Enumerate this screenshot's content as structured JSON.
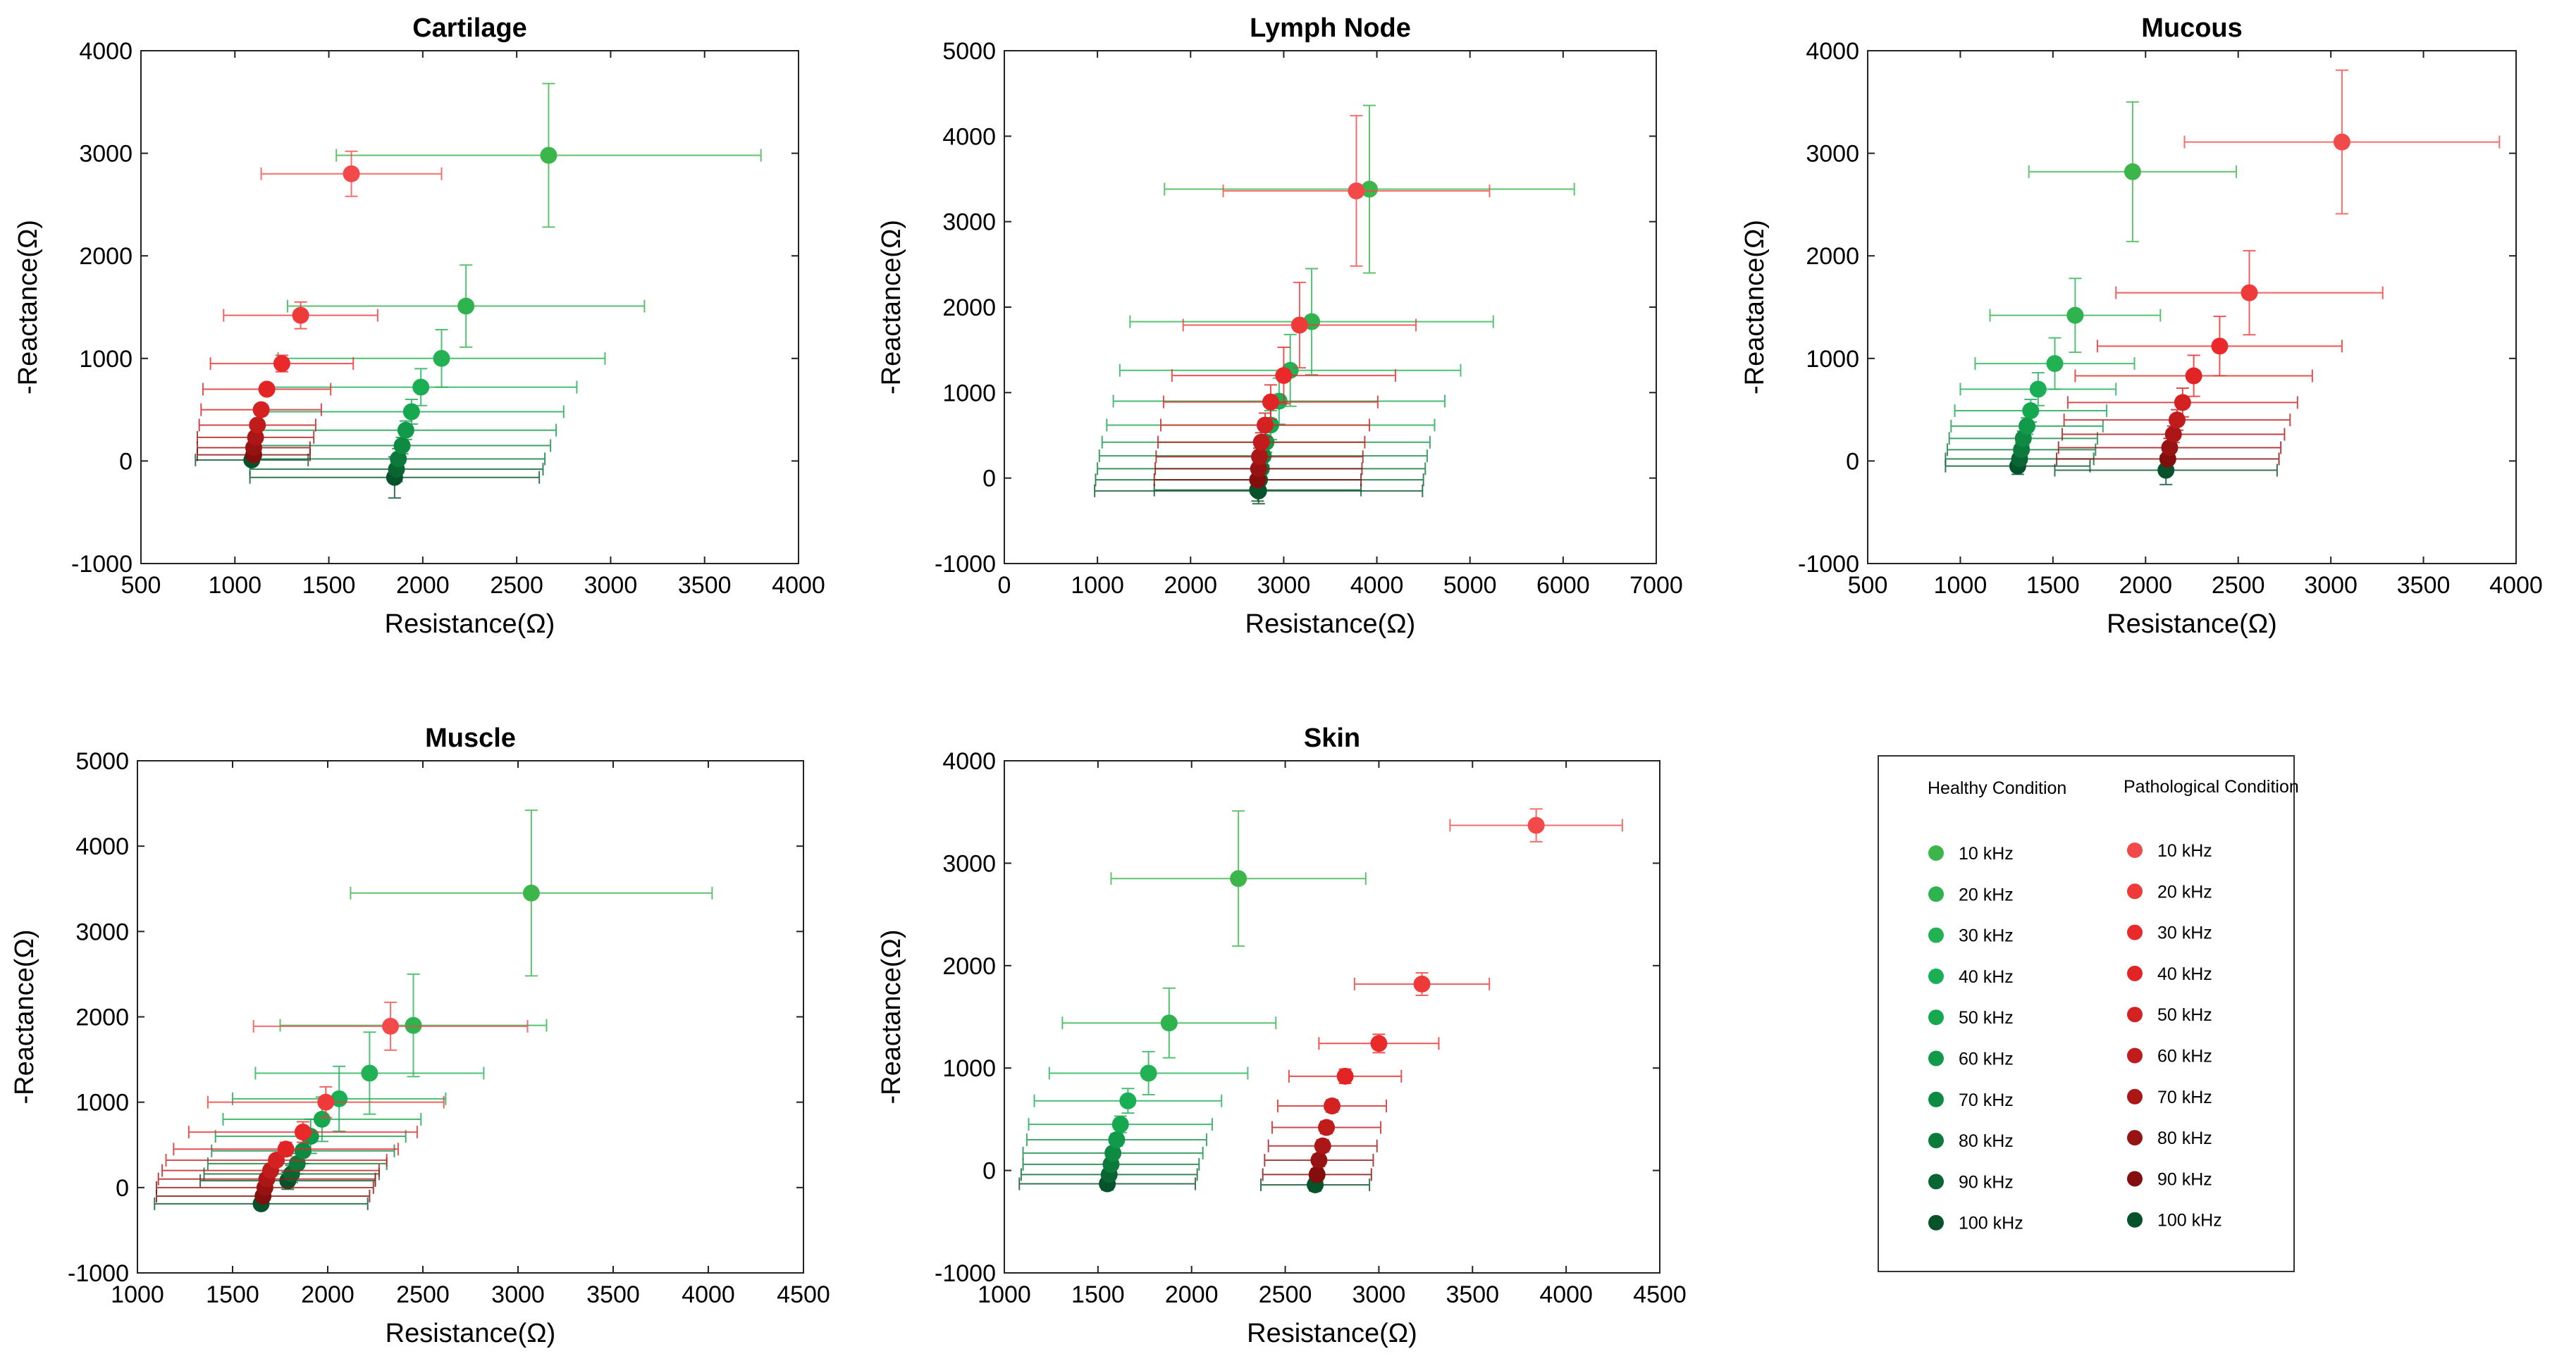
{
  "legend": {
    "healthy_title": "Healthy Condition",
    "pathological_title": "Pathological Condition",
    "healthy_labels": [
      "10 kHz",
      "20 kHz",
      "30 kHz",
      "40 kHz",
      "50 kHz",
      "60 kHz",
      "70 kHz",
      "80 kHz",
      "90 kHz",
      "100 kHz"
    ],
    "pathological_labels": [
      "10 kHz",
      "20 kHz",
      "30 kHz",
      "40 kHz",
      "50 kHz",
      "60 kHz",
      "70 kHz",
      "80 kHz",
      "90 kHz",
      "100 kHz"
    ],
    "healthy_colors": [
      "#3cb54a",
      "#2fb34f",
      "#22b253",
      "#1aae55",
      "#16a84f",
      "#119a4a",
      "#0e8a42",
      "#0b7a3a",
      "#096632",
      "#06522a"
    ],
    "pathological_colors": [
      "#f24a4a",
      "#ef3a3a",
      "#ea2a2a",
      "#e32424",
      "#d42222",
      "#c01c1c",
      "#ab1616",
      "#971212",
      "#820e0e",
      "#06522a"
    ]
  },
  "chart_data": [
    {
      "type": "scatter",
      "title": "Cartilage",
      "xlabel": "Resistance(Ω)",
      "ylabel": "-Reactance(Ω)",
      "xlim": [
        500,
        4000
      ],
      "ylim": [
        -1000,
        4000
      ],
      "xticks": [
        500,
        1000,
        1500,
        2000,
        2500,
        3000,
        3500,
        4000
      ],
      "yticks": [
        -1000,
        0,
        1000,
        2000,
        3000,
        4000
      ],
      "xtick_labels": [
        "500",
        "1000",
        "1500",
        "2000",
        "2500",
        "3000",
        "3500",
        "4000"
      ],
      "ytick_labels": [
        "-1000",
        "0",
        "1000",
        "2000",
        "3000",
        "4000"
      ],
      "series": [
        {
          "name": "Healthy",
          "x": [
            2670,
            2230,
            2100,
            1990,
            1940,
            1910,
            1890,
            1870,
            1860,
            1850
          ],
          "y": [
            2980,
            1510,
            1000,
            720,
            480,
            300,
            150,
            20,
            -80,
            -160
          ],
          "xerr": [
            1130,
            950,
            870,
            830,
            810,
            800,
            790,
            780,
            780,
            770
          ],
          "yerr": [
            700,
            400,
            280,
            180,
            120,
            90,
            80,
            100,
            120,
            200
          ]
        },
        {
          "name": "Pathological",
          "x": [
            1620,
            1350,
            1250,
            1170,
            1140,
            1120,
            1110,
            1100,
            1100,
            1090
          ],
          "y": [
            2800,
            1420,
            950,
            700,
            500,
            350,
            230,
            130,
            60,
            10
          ],
          "xerr": [
            480,
            410,
            380,
            340,
            320,
            310,
            310,
            300,
            300,
            300
          ],
          "yerr": [
            220,
            130,
            80,
            50,
            50,
            40,
            40,
            40,
            40,
            40
          ]
        }
      ]
    },
    {
      "type": "scatter",
      "title": "Lymph Node",
      "xlabel": "Resistance(Ω)",
      "ylabel": "-Reactance(Ω)",
      "xlim": [
        0,
        7000
      ],
      "ylim": [
        -1000,
        5000
      ],
      "xticks": [
        0,
        1000,
        2000,
        3000,
        4000,
        5000,
        6000,
        7000
      ],
      "yticks": [
        -1000,
        0,
        1000,
        2000,
        3000,
        4000,
        5000
      ],
      "xtick_labels": [
        "0",
        "1000",
        "2000",
        "3000",
        "4000",
        "5000",
        "6000",
        "7000"
      ],
      "ytick_labels": [
        "-1000",
        "0",
        "1000",
        "2000",
        "3000",
        "4000",
        "5000"
      ],
      "series": [
        {
          "name": "Healthy",
          "x": [
            3920,
            3300,
            3070,
            2950,
            2860,
            2810,
            2780,
            2760,
            2740,
            2730
          ],
          "y": [
            3380,
            1830,
            1260,
            900,
            620,
            420,
            260,
            110,
            -20,
            -150
          ],
          "xerr": [
            2200,
            1950,
            1830,
            1780,
            1760,
            1760,
            1760,
            1760,
            1760,
            1760
          ],
          "yerr": [
            980,
            620,
            420,
            270,
            170,
            120,
            110,
            110,
            120,
            150
          ]
        },
        {
          "name": "Pathological",
          "x": [
            3780,
            3170,
            3000,
            2860,
            2800,
            2760,
            2740,
            2730,
            2720,
            2720
          ],
          "y": [
            3360,
            1790,
            1200,
            890,
            620,
            420,
            250,
            110,
            -20,
            -140
          ],
          "xerr": [
            1430,
            1250,
            1200,
            1150,
            1120,
            1110,
            1110,
            1110,
            1110,
            1110
          ],
          "yerr": [
            880,
            500,
            330,
            200,
            140,
            110,
            100,
            100,
            110,
            130
          ]
        }
      ]
    },
    {
      "type": "scatter",
      "title": "Mucous",
      "xlabel": "Resistance(Ω)",
      "ylabel": "-Reactance(Ω)",
      "xlim": [
        500,
        4000
      ],
      "ylim": [
        -1000,
        4000
      ],
      "xticks": [
        500,
        1000,
        1500,
        2000,
        2500,
        3000,
        3500,
        4000
      ],
      "yticks": [
        -1000,
        0,
        1000,
        2000,
        3000,
        4000
      ],
      "xtick_labels": [
        "500",
        "1000",
        "1500",
        "2000",
        "2500",
        "3000",
        "3500",
        "4000"
      ],
      "ytick_labels": [
        "-1000",
        "0",
        "1000",
        "2000",
        "3000",
        "4000"
      ],
      "series": [
        {
          "name": "Healthy",
          "x": [
            1930,
            1620,
            1510,
            1420,
            1380,
            1360,
            1340,
            1330,
            1320,
            1310
          ],
          "y": [
            2820,
            1420,
            950,
            700,
            490,
            340,
            220,
            110,
            20,
            -50
          ],
          "xerr": [
            560,
            460,
            430,
            420,
            410,
            410,
            400,
            400,
            400,
            390
          ],
          "yerr": [
            680,
            360,
            250,
            160,
            110,
            80,
            70,
            70,
            70,
            80
          ]
        },
        {
          "name": "Pathological",
          "x": [
            3060,
            2560,
            2400,
            2260,
            2200,
            2170,
            2150,
            2130,
            2120,
            2110
          ],
          "y": [
            3110,
            1640,
            1120,
            830,
            570,
            400,
            260,
            130,
            20,
            -90
          ],
          "xerr": [
            850,
            720,
            660,
            640,
            620,
            610,
            600,
            600,
            600,
            600
          ],
          "yerr": [
            700,
            410,
            290,
            200,
            140,
            100,
            80,
            90,
            100,
            140
          ]
        }
      ]
    },
    {
      "type": "scatter",
      "title": "Muscle",
      "xlabel": "Resistance(Ω)",
      "ylabel": "-Reactance(Ω)",
      "xlim": [
        1000,
        4500
      ],
      "ylim": [
        -1000,
        5000
      ],
      "xticks": [
        1000,
        1500,
        2000,
        2500,
        3000,
        3500,
        4000,
        4500
      ],
      "yticks": [
        -1000,
        0,
        1000,
        2000,
        3000,
        4000,
        5000
      ],
      "xtick_labels": [
        "1000",
        "1500",
        "2000",
        "2500",
        "3000",
        "3500",
        "4000",
        "4500"
      ],
      "ytick_labels": [
        "-1000",
        "0",
        "1000",
        "2000",
        "3000",
        "4000",
        "5000"
      ],
      "series": [
        {
          "name": "Healthy",
          "x": [
            3070,
            2450,
            2220,
            2060,
            1970,
            1910,
            1870,
            1840,
            1810,
            1790
          ],
          "y": [
            3450,
            1900,
            1340,
            1040,
            800,
            600,
            430,
            280,
            160,
            80
          ],
          "xerr": [
            950,
            700,
            600,
            560,
            520,
            500,
            480,
            470,
            460,
            460
          ],
          "yerr": [
            970,
            600,
            480,
            380,
            260,
            200,
            150,
            120,
            100,
            100
          ]
        },
        {
          "name": "Pathological",
          "x": [
            2330,
            1990,
            1870,
            1780,
            1730,
            1700,
            1680,
            1670,
            1660,
            1650
          ],
          "y": [
            1890,
            1000,
            650,
            450,
            320,
            200,
            100,
            0,
            -100,
            -190
          ],
          "xerr": [
            720,
            620,
            600,
            590,
            580,
            570,
            570,
            570,
            560,
            560
          ],
          "yerr": [
            280,
            180,
            120,
            80,
            60,
            50,
            50,
            50,
            50,
            60
          ]
        }
      ]
    },
    {
      "type": "scatter",
      "title": "Skin",
      "xlabel": "Resistance(Ω)",
      "ylabel": "-Reactance(Ω)",
      "xlim": [
        1000,
        4500
      ],
      "ylim": [
        -1000,
        4000
      ],
      "xticks": [
        1000,
        1500,
        2000,
        2500,
        3000,
        3500,
        4000,
        4500
      ],
      "yticks": [
        -1000,
        0,
        1000,
        2000,
        3000,
        4000
      ],
      "xtick_labels": [
        "1000",
        "1500",
        "2000",
        "2500",
        "3000",
        "3500",
        "4000",
        "4500"
      ],
      "ytick_labels": [
        "-1000",
        "0",
        "1000",
        "2000",
        "3000",
        "4000"
      ],
      "series": [
        {
          "name": "Healthy",
          "x": [
            2250,
            1880,
            1770,
            1660,
            1620,
            1600,
            1580,
            1570,
            1560,
            1550
          ],
          "y": [
            2850,
            1440,
            950,
            680,
            450,
            300,
            170,
            60,
            -40,
            -130
          ],
          "xerr": [
            680,
            570,
            530,
            500,
            490,
            480,
            480,
            470,
            470,
            470
          ],
          "yerr": [
            660,
            340,
            210,
            120,
            80,
            60,
            50,
            50,
            50,
            60
          ]
        },
        {
          "name": "Pathological",
          "x": [
            3840,
            3230,
            3000,
            2820,
            2750,
            2720,
            2700,
            2680,
            2670,
            2660
          ],
          "y": [
            3370,
            1820,
            1240,
            920,
            630,
            420,
            240,
            100,
            -40,
            -140
          ],
          "xerr": [
            460,
            360,
            320,
            300,
            290,
            290,
            290,
            290,
            290,
            290
          ],
          "yerr": [
            160,
            110,
            90,
            70,
            60,
            60,
            60,
            60,
            60,
            60
          ]
        }
      ]
    }
  ]
}
